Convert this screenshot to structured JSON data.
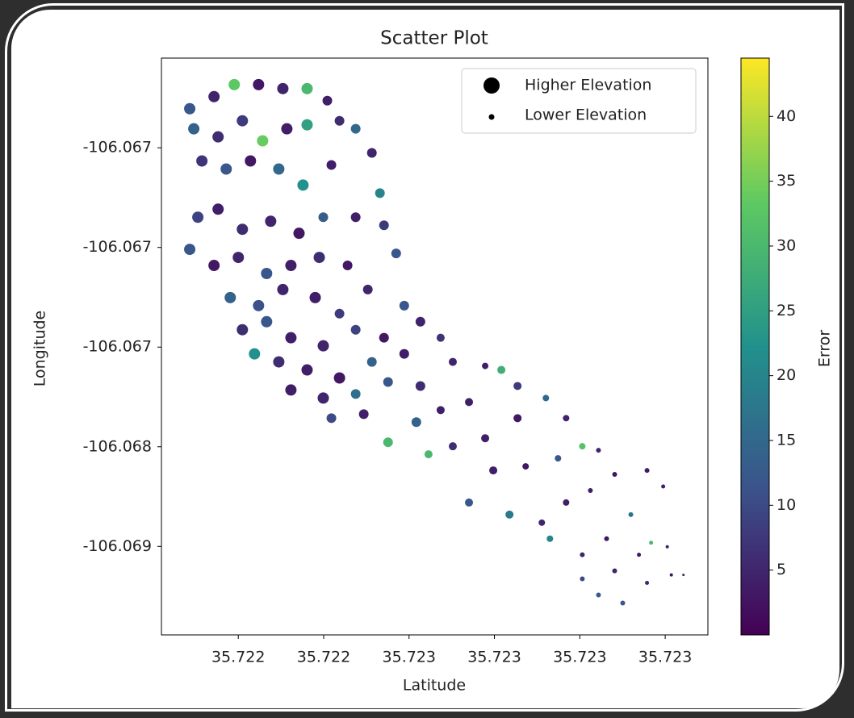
{
  "chart_data": {
    "type": "scatter",
    "title": "Scatter Plot",
    "x_label": "Latitude",
    "y_label": "Longitude",
    "colorbar_label": "Error",
    "legend": [
      "Higher Elevation",
      "Lower Elevation"
    ],
    "xlim": [
      35.72202,
      35.7233
    ],
    "ylim": [
      -106.068944,
      -106.06605
    ],
    "xticks": [
      {
        "value": 35.7222,
        "label": "35.722"
      },
      {
        "value": 35.7224,
        "label": "35.722"
      },
      {
        "value": 35.7226,
        "label": "35.723"
      },
      {
        "value": 35.7228,
        "label": "35.723"
      },
      {
        "value": 35.723,
        "label": "35.723"
      },
      {
        "value": 35.7232,
        "label": "35.723"
      }
    ],
    "yticks": [
      {
        "value": -106.0665,
        "label": "-106.067"
      },
      {
        "value": -106.067,
        "label": "-106.067"
      },
      {
        "value": -106.0675,
        "label": "-106.067"
      },
      {
        "value": -106.068,
        "label": "-106.068"
      },
      {
        "value": -106.0685,
        "label": "-106.069"
      }
    ],
    "clim": [
      0,
      44.5
    ],
    "cticks": [
      5,
      10,
      15,
      20,
      25,
      30,
      35,
      40
    ],
    "x": [
      35.7220863,
      35.7221432,
      35.7221906,
      35.7222475,
      35.7223044,
      35.7223612,
      35.7224086,
      35.7220958,
      35.7221527,
      35.7222096,
      35.722257,
      35.7223138,
      35.7223612,
      35.7224371,
      35.722475,
      35.7221148,
      35.7221717,
      35.7222285,
      35.7222949,
      35.7223517,
      35.7224181,
      35.7225129,
      35.7225318,
      35.7221053,
      35.7221527,
      35.7222096,
      35.7222759,
      35.7223423,
      35.7223991,
      35.722475,
      35.7225413,
      35.7220863,
      35.7221432,
      35.7222001,
      35.7222664,
      35.7223233,
      35.7223897,
      35.722456,
      35.7225698,
      35.7221812,
      35.7222475,
      35.7223044,
      35.7223802,
      35.7224371,
      35.7225034,
      35.7225887,
      35.7222096,
      35.7222664,
      35.7223233,
      35.7223991,
      35.722475,
      35.7225413,
      35.7226266,
      35.722238,
      35.7222949,
      35.7223612,
      35.7224371,
      35.7225129,
      35.7225887,
      35.722674,
      35.7223233,
      35.7223991,
      35.722475,
      35.7225508,
      35.7226266,
      35.7227025,
      35.7227783,
      35.7224181,
      35.7224939,
      35.7225508,
      35.7226171,
      35.722674,
      35.7227404,
      35.7228162,
      35.7228541,
      35.7226456,
      35.7227025,
      35.7227783,
      35.7228541,
      35.7229205,
      35.7229679,
      35.7227404,
      35.7227972,
      35.7228731,
      35.7229489,
      35.7230058,
      35.7230437,
      35.7228352,
      35.722911,
      35.7229679,
      35.7230247,
      35.7230816,
      35.7231574,
      35.72293,
      35.7230058,
      35.7230627,
      35.7231195,
      35.7231953,
      35.7230058,
      35.7230816,
      35.7231385,
      35.7231669,
      35.7232048,
      35.7230437,
      35.7231005,
      35.7231574,
      35.7232143,
      35.7232427
    ],
    "y": [
      -106.066304,
      -106.0662435,
      -106.0661831,
      -106.0661831,
      -106.0662032,
      -106.0662032,
      -106.0662637,
      -106.0664048,
      -106.0664452,
      -106.0663645,
      -106.0664653,
      -106.0664048,
      -106.0663847,
      -106.0663645,
      -106.0664048,
      -106.0665661,
      -106.0666065,
      -106.0665661,
      -106.0666065,
      -106.0666871,
      -106.0665863,
      -106.0665258,
      -106.0667274,
      -106.0668484,
      -106.0668081,
      -106.0669089,
      -106.0668686,
      -106.066929,
      -106.0668484,
      -106.0668484,
      -106.0668887,
      -106.0670097,
      -106.0670903,
      -106.06705,
      -106.0671307,
      -106.0670903,
      -106.06705,
      -106.0670903,
      -106.0670298,
      -106.0672516,
      -106.0672919,
      -106.0672113,
      -106.0672516,
      -106.0673323,
      -106.0672113,
      -106.0672919,
      -106.0674129,
      -106.0673726,
      -106.0674532,
      -106.0674936,
      -106.0674129,
      -106.0674532,
      -106.0673726,
      -106.0675339,
      -106.0675742,
      -106.0676145,
      -106.0676549,
      -106.0675742,
      -106.0675339,
      -106.0674532,
      -106.0677153,
      -106.0677557,
      -106.0677355,
      -106.067675,
      -106.0676952,
      -106.0675742,
      -106.0675944,
      -106.0678565,
      -106.0678363,
      -106.0679774,
      -106.0678766,
      -106.0678161,
      -106.0677758,
      -106.0676145,
      -106.0676952,
      -106.0680379,
      -106.0679976,
      -106.0679573,
      -106.0678565,
      -106.0677557,
      -106.0678565,
      -106.0682799,
      -106.0681186,
      -106.0680984,
      -106.0680581,
      -106.0679976,
      -106.0680178,
      -106.0683403,
      -106.0683807,
      -106.0682799,
      -106.0682194,
      -106.0681387,
      -106.0681186,
      -106.0684613,
      -106.068542,
      -106.0684613,
      -106.0683403,
      -106.0681992,
      -106.0686629,
      -106.0686226,
      -106.068542,
      -106.0684815,
      -106.0685016,
      -106.0687436,
      -106.0687839,
      -106.0686831,
      -106.0686428,
      -106.0686428
    ],
    "sizes": [
      7,
      7,
      7,
      7,
      7,
      7,
      6,
      7,
      7,
      7,
      7,
      7,
      7,
      6,
      6,
      7,
      7,
      7,
      7,
      7,
      6,
      6,
      6,
      7,
      7,
      7,
      7,
      7,
      6,
      6,
      6,
      7,
      7,
      7,
      7,
      7,
      7,
      6,
      6,
      7,
      7,
      7,
      7,
      6,
      6,
      6,
      7,
      7,
      7,
      7,
      6,
      6,
      6,
      7,
      7,
      7,
      7,
      6,
      6,
      5,
      7,
      7,
      6,
      6,
      6,
      5,
      4,
      6,
      6,
      6,
      6,
      5,
      5,
      5,
      5,
      5,
      5,
      5,
      5,
      4,
      4,
      5,
      5,
      4,
      4,
      4,
      3,
      5,
      4,
      4,
      3,
      3,
      3,
      4,
      3,
      3,
      3,
      2.5,
      3,
      3,
      2.5,
      2.5,
      2,
      3,
      3,
      2.5,
      2,
      1.5
    ],
    "color_values": [
      12,
      5,
      33,
      3,
      5,
      30,
      4,
      14,
      6,
      8,
      34,
      4,
      25,
      6,
      15,
      7,
      12,
      3,
      15,
      22,
      4,
      5,
      20,
      9,
      4,
      6,
      5,
      3,
      13,
      4,
      8,
      12,
      3,
      5,
      12,
      4,
      6,
      3,
      12,
      14,
      11,
      5,
      4,
      8,
      5,
      12,
      6,
      12,
      4,
      5,
      9,
      3,
      5,
      22,
      6,
      4,
      3,
      14,
      4,
      7,
      4,
      5,
      16,
      12,
      6,
      5,
      4,
      10,
      4,
      30,
      14,
      4,
      4,
      28,
      8,
      30,
      6,
      4,
      3,
      15,
      5,
      12,
      4,
      3,
      12,
      32,
      5,
      18,
      5,
      4,
      4,
      3,
      4,
      20,
      5,
      3,
      17,
      4,
      10,
      5,
      3,
      30,
      4,
      13,
      12,
      5,
      3,
      4
    ]
  }
}
